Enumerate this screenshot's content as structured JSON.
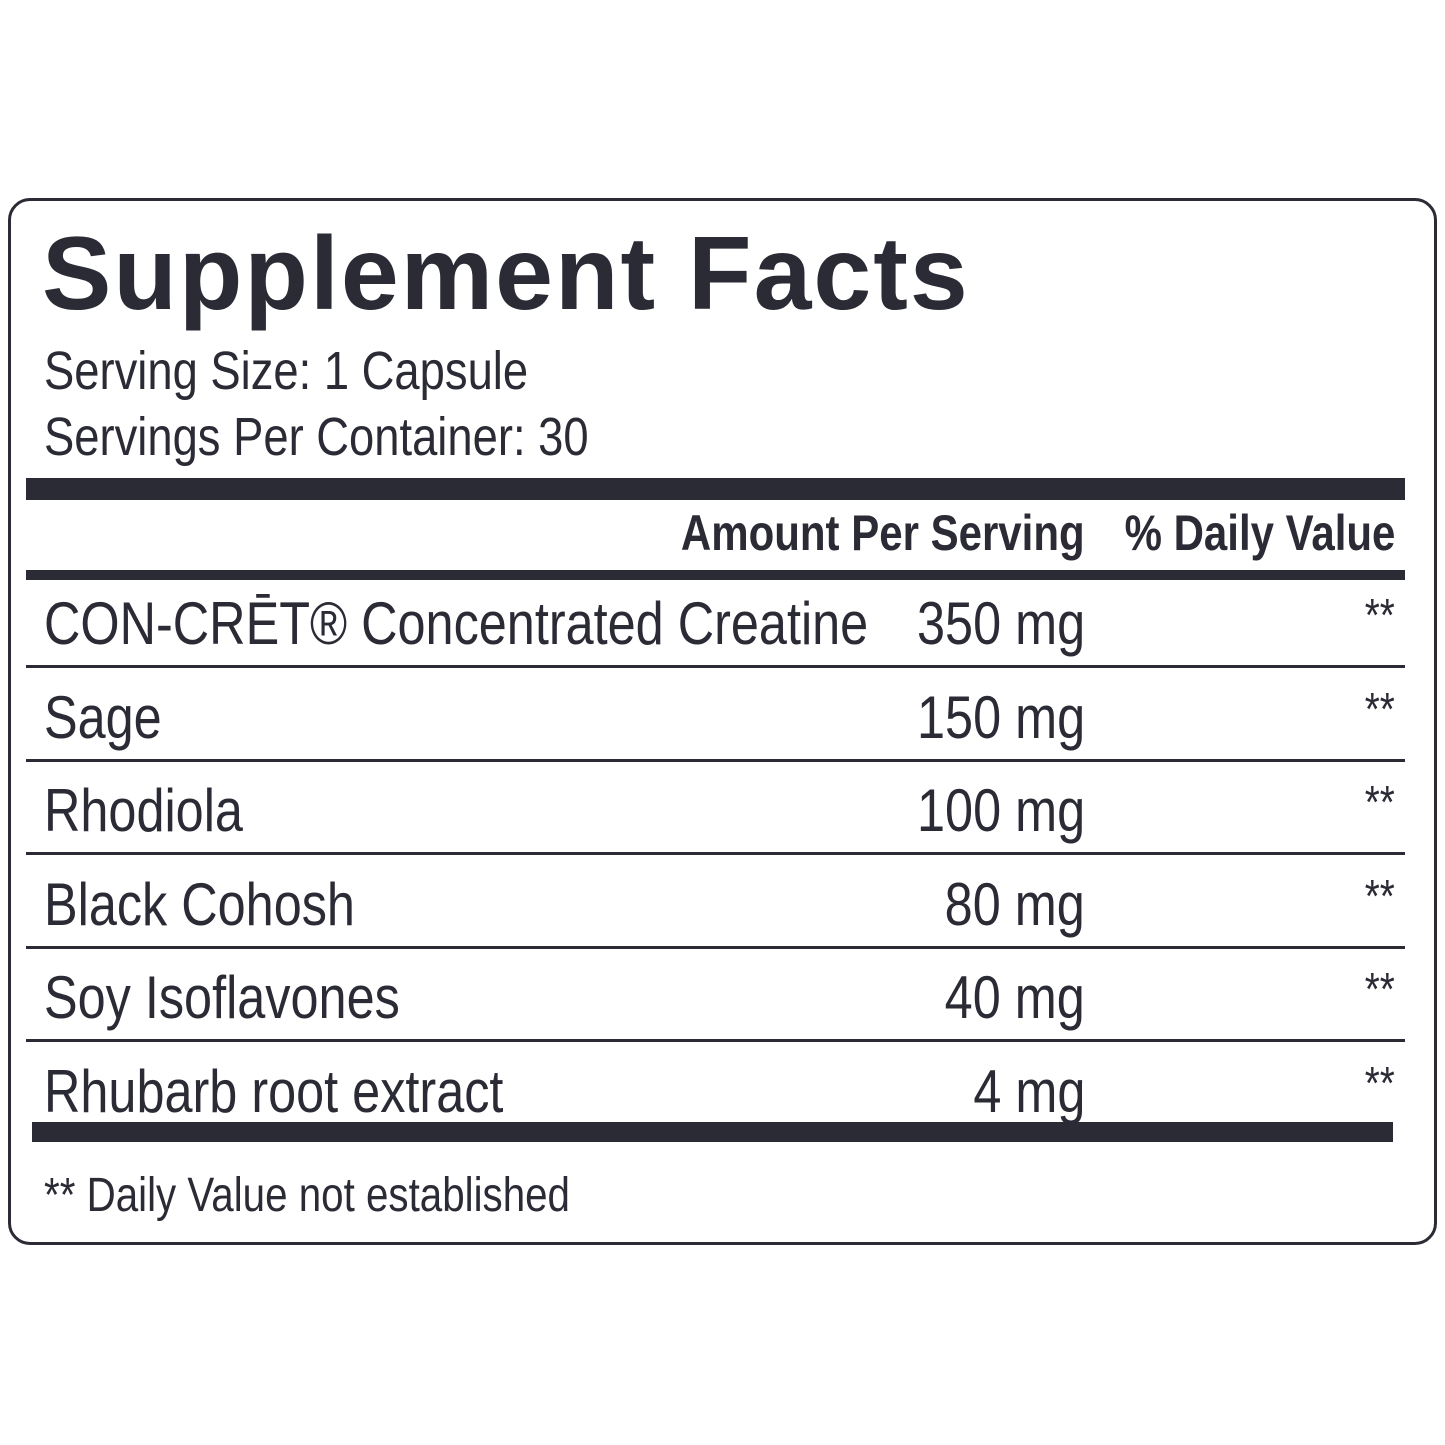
{
  "title": "Supplement Facts",
  "serving_size": "Serving Size: 1 Capsule",
  "servings_per_container": "Servings Per Container: 30",
  "header": {
    "amount": "Amount Per Serving",
    "daily_value": "% Daily Value"
  },
  "rows": [
    {
      "name": "CON-CRĒT® Concentrated Creatine",
      "amount": "350 mg",
      "daily_value": "**"
    },
    {
      "name": "Sage",
      "amount": "150 mg",
      "daily_value": "**"
    },
    {
      "name": "Rhodiola",
      "amount": "100 mg",
      "daily_value": "**"
    },
    {
      "name": "Black Cohosh",
      "amount": "80 mg",
      "daily_value": "**"
    },
    {
      "name": "Soy Isoflavones",
      "amount": "40 mg",
      "daily_value": "**"
    },
    {
      "name": "Rhubarb root extract",
      "amount": "4 mg",
      "daily_value": "**"
    }
  ],
  "footnote": "** Daily Value not established"
}
